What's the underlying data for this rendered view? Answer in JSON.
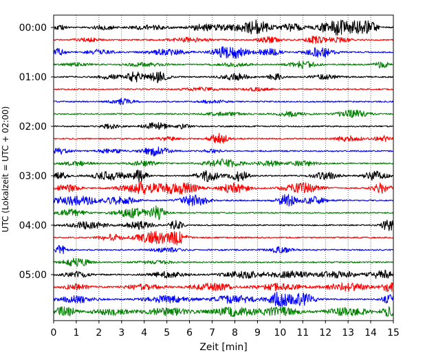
{
  "chart_data": {
    "type": "line",
    "title": "",
    "xlabel": "Zeit  [min]",
    "ylabel": "UTC (Lokalzeit = UTC + 02:00)",
    "xlim": [
      0,
      15
    ],
    "x_ticks": [
      0,
      1,
      2,
      3,
      4,
      5,
      6,
      7,
      8,
      9,
      10,
      11,
      12,
      13,
      14,
      15
    ],
    "y_tick_labels": [
      "00:00",
      "01:00",
      "02:00",
      "03:00",
      "04:00",
      "05:00"
    ],
    "traces_per_hour": 4,
    "trace_interval_min": 15,
    "grid": "vertical-dotted",
    "colors": [
      "#000000",
      "#ff0000",
      "#0000ff",
      "#008000"
    ],
    "traces": [
      {
        "start": "00:00",
        "color": "#000000",
        "bursts": [
          [
            0.3,
            0.25,
            0.25
          ],
          [
            2.2,
            0.5,
            0.2
          ],
          [
            4.2,
            0.8,
            0.2
          ],
          [
            6.5,
            0.6,
            0.22
          ],
          [
            8.0,
            1.2,
            0.25
          ],
          [
            9.0,
            0.5,
            0.55
          ],
          [
            10.5,
            0.6,
            0.3
          ],
          [
            12.5,
            0.8,
            0.65
          ],
          [
            13.5,
            0.4,
            0.45
          ],
          [
            14.0,
            0.3,
            0.5
          ]
        ]
      },
      {
        "start": "00:15",
        "color": "#ff0000",
        "bursts": [
          [
            1.5,
            0.5,
            0.15
          ],
          [
            6.0,
            0.8,
            0.2
          ],
          [
            9.5,
            0.5,
            0.25
          ],
          [
            11.5,
            0.4,
            0.3
          ],
          [
            12.5,
            0.6,
            0.2
          ]
        ]
      },
      {
        "start": "00:30",
        "color": "#0000ff",
        "bursts": [
          [
            0.2,
            0.3,
            0.3
          ],
          [
            2.0,
            0.6,
            0.2
          ],
          [
            5.0,
            0.8,
            0.25
          ],
          [
            7.8,
            0.7,
            0.6
          ],
          [
            9.5,
            0.5,
            0.35
          ],
          [
            11.8,
            0.6,
            0.45
          ]
        ]
      },
      {
        "start": "00:45",
        "color": "#008000",
        "bursts": [
          [
            1.0,
            0.6,
            0.12
          ],
          [
            4.0,
            0.8,
            0.15
          ],
          [
            8.0,
            0.7,
            0.15
          ],
          [
            11.0,
            0.6,
            0.3
          ],
          [
            14.5,
            0.3,
            0.3
          ]
        ]
      },
      {
        "start": "01:00",
        "color": "#000000",
        "bursts": [
          [
            2.5,
            0.5,
            0.2
          ],
          [
            3.6,
            0.4,
            0.45
          ],
          [
            4.6,
            0.4,
            0.5
          ],
          [
            8.0,
            0.6,
            0.3
          ],
          [
            9.8,
            0.3,
            0.3
          ],
          [
            12.0,
            0.6,
            0.2
          ]
        ]
      },
      {
        "start": "01:15",
        "color": "#ff0000",
        "bursts": [
          [
            6.5,
            0.8,
            0.15
          ],
          [
            9.0,
            0.6,
            0.12
          ]
        ]
      },
      {
        "start": "01:30",
        "color": "#0000ff",
        "bursts": [
          [
            3.0,
            0.5,
            0.25
          ],
          [
            7.0,
            0.6,
            0.12
          ]
        ]
      },
      {
        "start": "01:45",
        "color": "#008000",
        "bursts": [
          [
            7.5,
            0.8,
            0.15
          ],
          [
            10.5,
            0.6,
            0.2
          ],
          [
            13.2,
            0.6,
            0.35
          ]
        ]
      },
      {
        "start": "02:00",
        "color": "#000000",
        "bursts": [
          [
            2.5,
            0.4,
            0.2
          ],
          [
            4.5,
            0.5,
            0.35
          ],
          [
            5.7,
            0.3,
            0.2
          ]
        ]
      },
      {
        "start": "02:15",
        "color": "#ff0000",
        "bursts": [
          [
            5.0,
            0.5,
            0.15
          ],
          [
            7.3,
            0.4,
            0.45
          ],
          [
            13.0,
            0.6,
            0.25
          ],
          [
            14.5,
            0.3,
            0.3
          ]
        ]
      },
      {
        "start": "02:30",
        "color": "#0000ff",
        "bursts": [
          [
            0.3,
            0.4,
            0.25
          ],
          [
            2.5,
            0.5,
            0.2
          ],
          [
            4.5,
            0.6,
            0.4
          ],
          [
            7.0,
            0.4,
            0.15
          ]
        ]
      },
      {
        "start": "02:45",
        "color": "#008000",
        "bursts": [
          [
            1.0,
            0.6,
            0.2
          ],
          [
            4.0,
            0.6,
            0.2
          ],
          [
            7.5,
            0.8,
            0.35
          ],
          [
            9.5,
            0.5,
            0.25
          ],
          [
            11.0,
            0.6,
            0.2
          ]
        ]
      },
      {
        "start": "03:00",
        "color": "#000000",
        "bursts": [
          [
            0.3,
            0.3,
            0.3
          ],
          [
            2.5,
            0.8,
            0.35
          ],
          [
            3.8,
            0.3,
            0.5
          ],
          [
            6.8,
            0.5,
            0.5
          ],
          [
            8.2,
            0.4,
            0.45
          ],
          [
            12.0,
            0.6,
            0.3
          ],
          [
            14.2,
            0.5,
            0.4
          ]
        ]
      },
      {
        "start": "03:15",
        "color": "#ff0000",
        "bursts": [
          [
            0.6,
            0.5,
            0.3
          ],
          [
            3.8,
            0.8,
            0.55
          ],
          [
            5.5,
            0.8,
            0.6
          ],
          [
            8.0,
            0.6,
            0.45
          ],
          [
            11.0,
            0.8,
            0.45
          ],
          [
            14.5,
            0.4,
            0.45
          ]
        ]
      },
      {
        "start": "03:30",
        "color": "#0000ff",
        "bursts": [
          [
            1.0,
            1.2,
            0.4
          ],
          [
            3.0,
            0.6,
            0.35
          ],
          [
            6.2,
            0.6,
            0.5
          ],
          [
            10.3,
            0.4,
            0.55
          ],
          [
            11.5,
            0.5,
            0.3
          ]
        ]
      },
      {
        "start": "03:45",
        "color": "#008000",
        "bursts": [
          [
            0.8,
            0.6,
            0.3
          ],
          [
            3.5,
            0.8,
            0.4
          ],
          [
            4.6,
            0.3,
            0.55
          ]
        ]
      },
      {
        "start": "04:00",
        "color": "#000000",
        "bursts": [
          [
            1.5,
            0.8,
            0.3
          ],
          [
            3.8,
            0.6,
            0.35
          ],
          [
            5.4,
            0.3,
            0.4
          ],
          [
            14.8,
            0.3,
            0.5
          ]
        ]
      },
      {
        "start": "04:15",
        "color": "#ff0000",
        "bursts": [
          [
            2.5,
            0.5,
            0.3
          ],
          [
            4.5,
            0.8,
            0.55
          ],
          [
            5.5,
            0.3,
            0.5
          ]
        ]
      },
      {
        "start": "04:30",
        "color": "#0000ff",
        "bursts": [
          [
            0.3,
            0.2,
            0.45
          ],
          [
            5.0,
            0.6,
            0.2
          ],
          [
            10.0,
            0.5,
            0.25
          ]
        ]
      },
      {
        "start": "04:45",
        "color": "#008000",
        "bursts": [
          [
            1.0,
            0.6,
            0.35
          ],
          [
            4.5,
            0.8,
            0.12
          ]
        ]
      },
      {
        "start": "05:00",
        "color": "#000000",
        "bursts": [
          [
            1.0,
            0.6,
            0.25
          ],
          [
            5.0,
            0.8,
            0.25
          ],
          [
            8.5,
            1.0,
            0.3
          ],
          [
            10.5,
            0.8,
            0.3
          ],
          [
            12.5,
            1.0,
            0.3
          ],
          [
            14.5,
            0.5,
            0.4
          ]
        ]
      },
      {
        "start": "05:15",
        "color": "#ff0000",
        "bursts": [
          [
            1.0,
            0.6,
            0.25
          ],
          [
            4.0,
            0.8,
            0.25
          ],
          [
            7.0,
            1.0,
            0.3
          ],
          [
            10.0,
            1.0,
            0.3
          ],
          [
            13.0,
            1.0,
            0.35
          ],
          [
            14.8,
            0.3,
            0.4
          ]
        ]
      },
      {
        "start": "05:30",
        "color": "#0000ff",
        "bursts": [
          [
            1.0,
            0.8,
            0.3
          ],
          [
            5.0,
            1.0,
            0.3
          ],
          [
            8.0,
            1.0,
            0.35
          ],
          [
            10.0,
            0.5,
            0.65
          ],
          [
            11.0,
            0.5,
            0.55
          ],
          [
            14.8,
            0.3,
            0.4
          ]
        ]
      },
      {
        "start": "05:45",
        "color": "#008000",
        "bursts": [
          [
            0.5,
            0.5,
            0.45
          ],
          [
            2.5,
            0.8,
            0.3
          ],
          [
            5.0,
            1.0,
            0.35
          ],
          [
            8.0,
            1.0,
            0.4
          ],
          [
            10.0,
            0.8,
            0.4
          ],
          [
            13.0,
            1.0,
            0.35
          ],
          [
            14.8,
            0.3,
            0.4
          ]
        ]
      }
    ]
  }
}
